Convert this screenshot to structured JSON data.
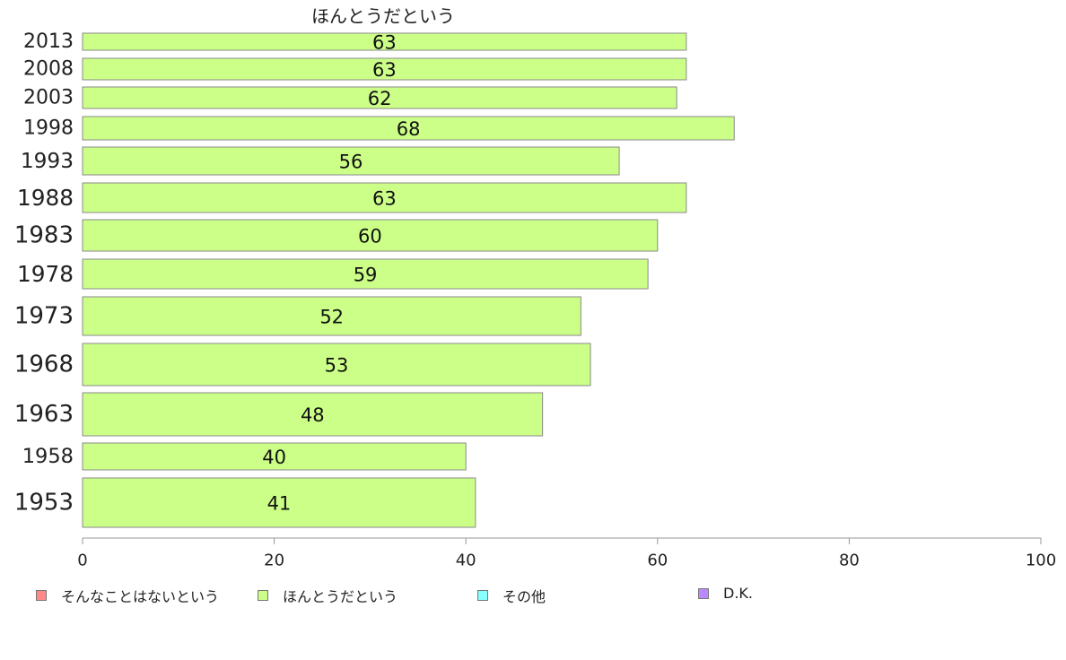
{
  "chart_data": {
    "type": "bar",
    "orientation": "horizontal",
    "title": "ほんとうだという",
    "categories": [
      "2013",
      "2008",
      "2003",
      "1998",
      "1993",
      "1988",
      "1983",
      "1978",
      "1973",
      "1968",
      "1963",
      "1958",
      "1953"
    ],
    "values": [
      63,
      63,
      62,
      68,
      56,
      63,
      60,
      59,
      52,
      53,
      48,
      40,
      41
    ],
    "data_labels": [
      "63",
      "63",
      "62",
      "68",
      "56",
      "63",
      "60",
      "59",
      "52",
      "53",
      "48",
      "40",
      "41"
    ],
    "xlim": [
      0,
      100
    ],
    "x_ticks": [
      "0",
      "20",
      "40",
      "60",
      "80",
      "100"
    ],
    "bar_color": "#ccff88",
    "grid": false,
    "legend_placement": "bottom",
    "legend": [
      {
        "label": "そんなことはないという",
        "color": "#ff8888"
      },
      {
        "label": "ほんとうだという",
        "color": "#ccff88"
      },
      {
        "label": "その他",
        "color": "#88ffff"
      },
      {
        "label": "D.K.",
        "color": "#bb88ff"
      }
    ]
  }
}
